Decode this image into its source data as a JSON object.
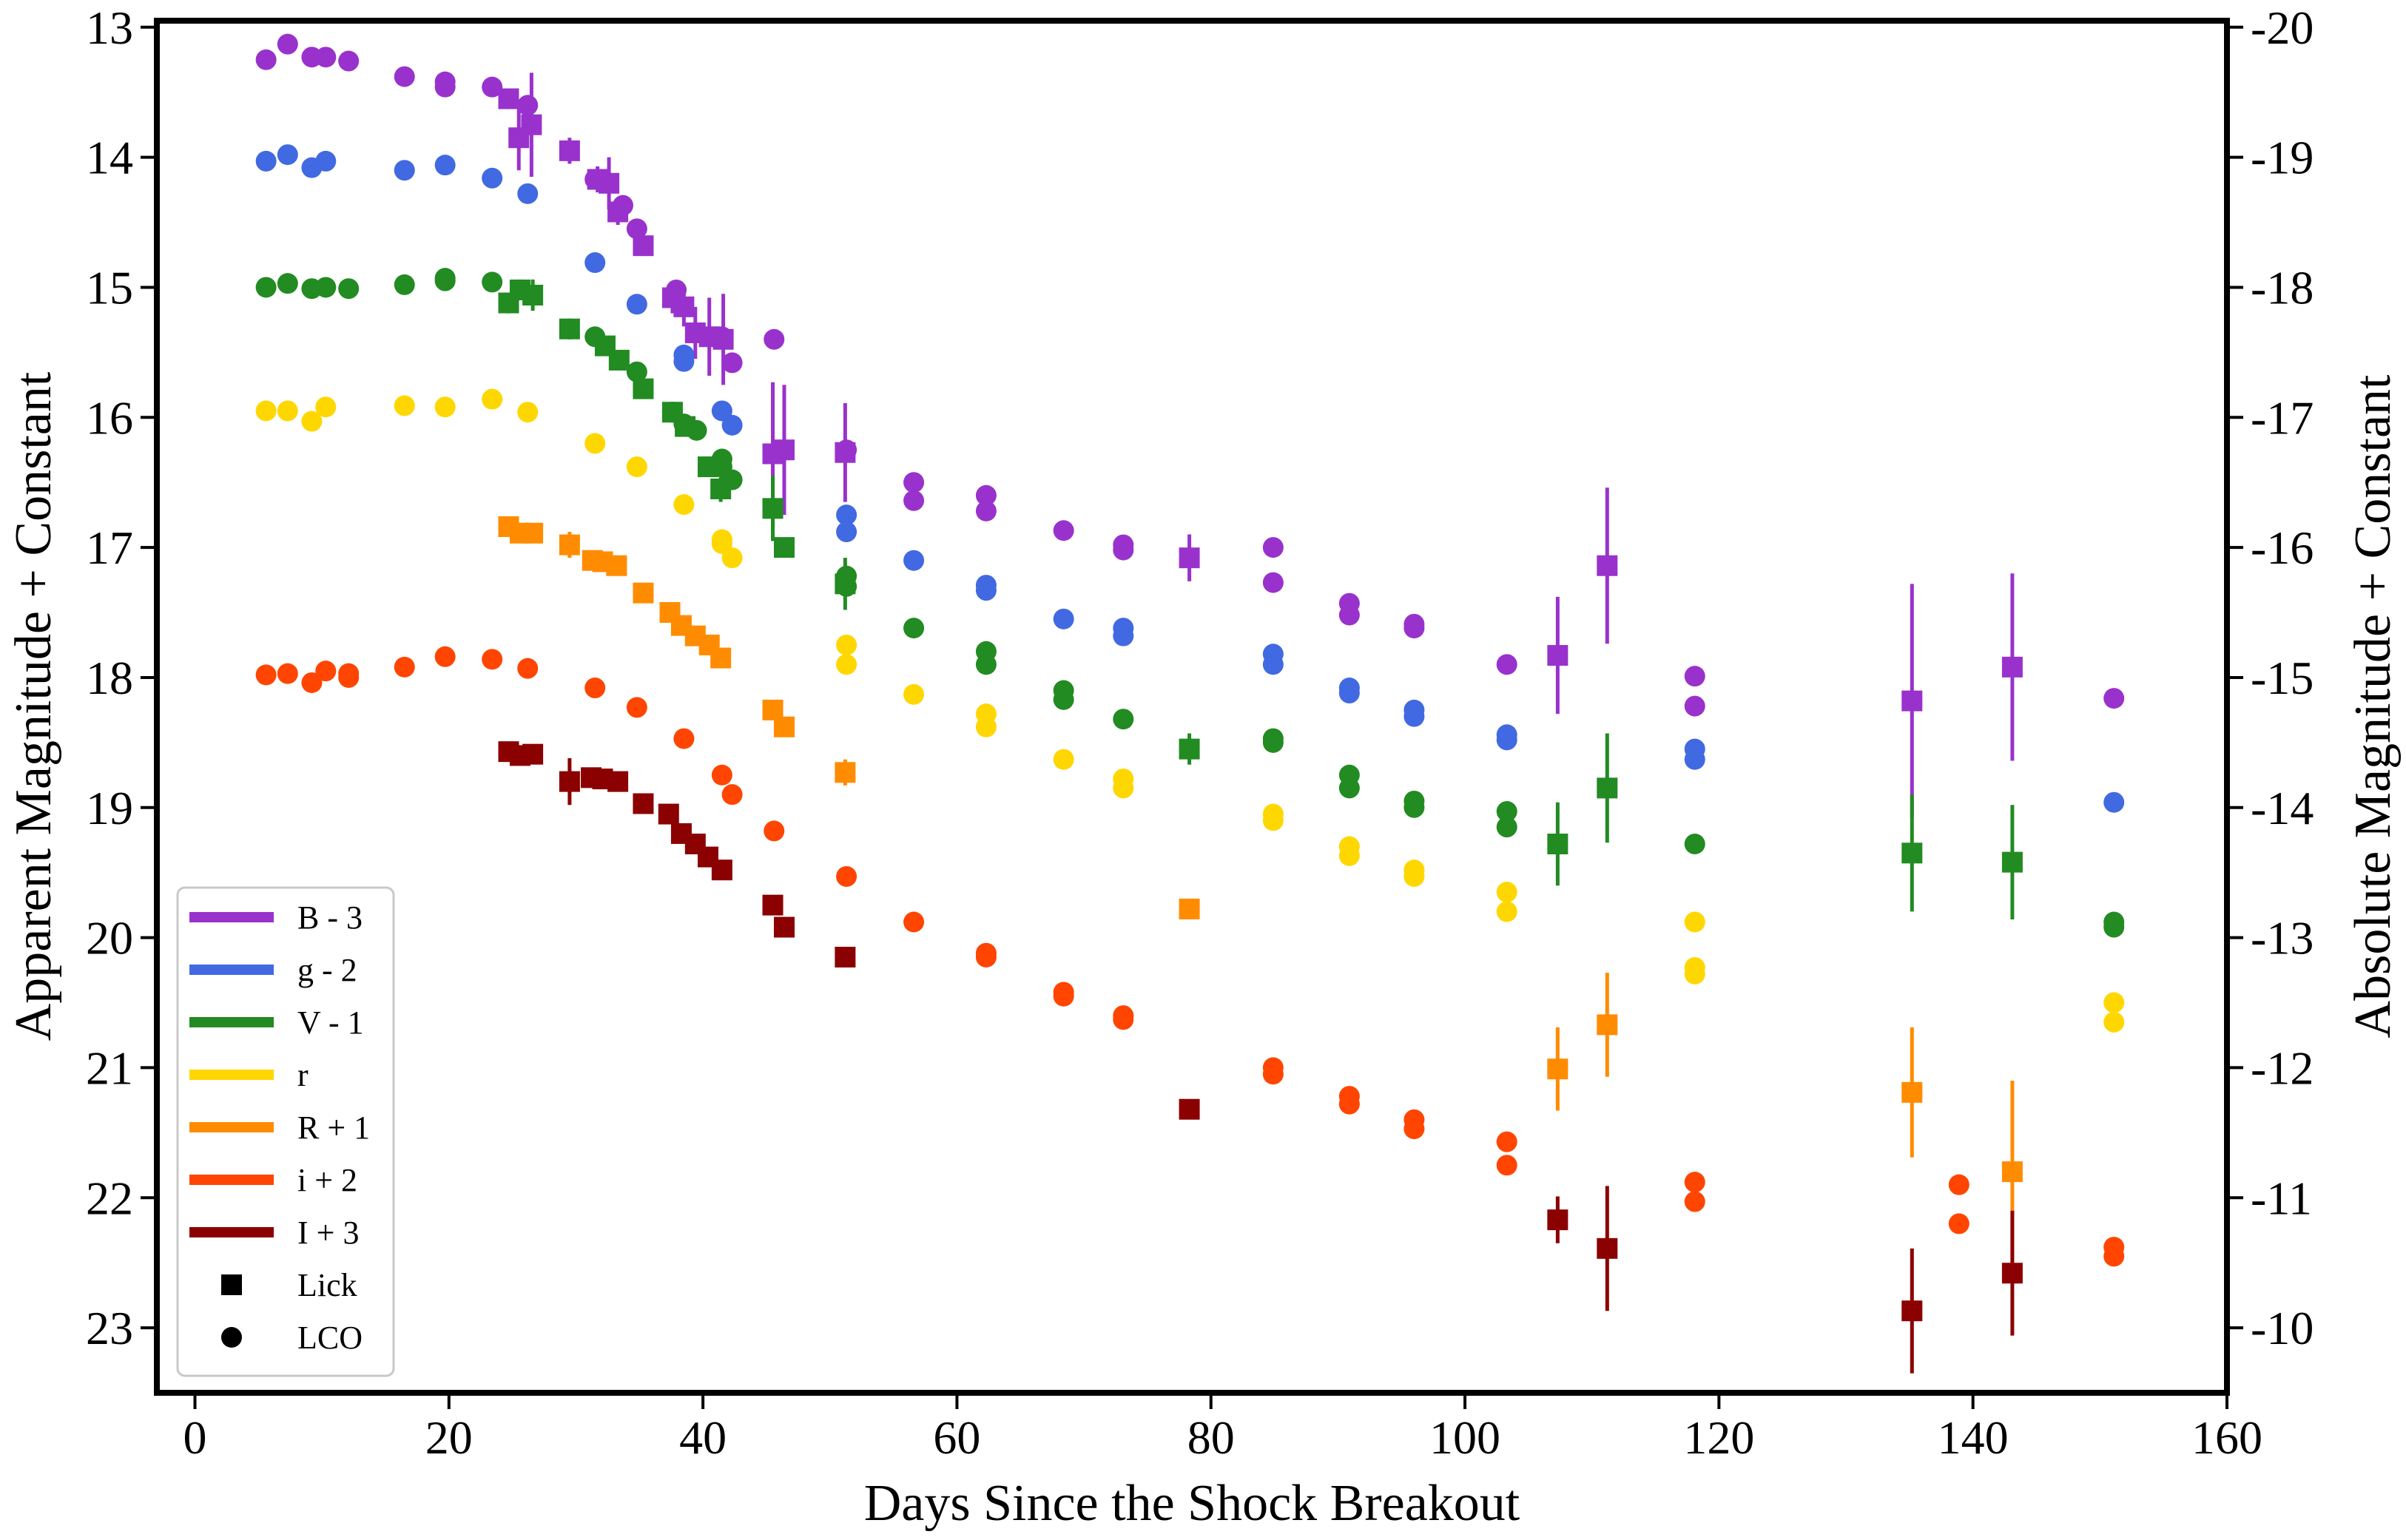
{
  "chart_data": {
    "type": "scatter",
    "title": "",
    "xlabel": "Days Since the Shock Breakout",
    "ylabel": "Apparent Magnitude + Constant",
    "ylabel_right": "Absolute Magnitude + Constant",
    "xlim": [
      -3,
      160
    ],
    "ylim": [
      23.5,
      12.95
    ],
    "ylim_right": [
      -9.5,
      -20.05
    ],
    "y_inverted": true,
    "grid": false,
    "legend_position": "bottom-left",
    "x_ticks": [
      "0",
      "20",
      "40",
      "60",
      "80",
      "100",
      "120",
      "140",
      "160"
    ],
    "y_ticks": [
      "13",
      "14",
      "15",
      "16",
      "17",
      "18",
      "19",
      "20",
      "21",
      "22",
      "23"
    ],
    "y_ticks_right": [
      "-20",
      "-19",
      "-18",
      "-17",
      "-16",
      "-15",
      "-14",
      "-13",
      "-12",
      "-11",
      "-10"
    ],
    "markers": [
      {
        "name": "Lick",
        "shape": "square"
      },
      {
        "name": "LCO",
        "shape": "circle"
      }
    ],
    "series": [
      {
        "name": "B - 3",
        "color": "#9932CC",
        "lco": [
          [
            5.6,
            13.25
          ],
          [
            7.3,
            13.13
          ],
          [
            9.2,
            13.23
          ],
          [
            10.3,
            13.23
          ],
          [
            12.1,
            13.26
          ],
          [
            16.5,
            13.38
          ],
          [
            19.7,
            13.42
          ],
          [
            19.7,
            13.46
          ],
          [
            23.4,
            13.46
          ],
          [
            26.2,
            13.6
          ],
          [
            31.5,
            14.17
          ],
          [
            33.7,
            14.37
          ],
          [
            34.8,
            14.55
          ],
          [
            37.9,
            15.02
          ],
          [
            41.5,
            15.38
          ],
          [
            42.3,
            15.58
          ],
          [
            45.6,
            15.4
          ],
          [
            51.3,
            16.25
          ],
          [
            56.6,
            16.5
          ],
          [
            56.6,
            16.64
          ],
          [
            62.3,
            16.6
          ],
          [
            62.3,
            16.72
          ],
          [
            68.4,
            16.87
          ],
          [
            73.1,
            16.98
          ],
          [
            73.1,
            17.02
          ],
          [
            84.9,
            17.0
          ],
          [
            84.9,
            17.27
          ],
          [
            90.9,
            17.43
          ],
          [
            90.9,
            17.52
          ],
          [
            96.0,
            17.59
          ],
          [
            96.0,
            17.62
          ],
          [
            103.3,
            17.9
          ],
          [
            118.1,
            17.99
          ],
          [
            118.1,
            18.22
          ],
          [
            151.1,
            18.16
          ]
        ],
        "lick": [
          [
            24.7,
            13.55
          ],
          [
            25.5,
            13.85,
            0.25
          ],
          [
            26.5,
            13.75,
            0.4
          ],
          [
            29.5,
            13.95,
            0.1
          ],
          [
            31.7,
            14.17,
            0.1
          ],
          [
            32.6,
            14.2,
            0.2
          ],
          [
            33.3,
            14.42,
            0.1
          ],
          [
            35.3,
            14.68
          ],
          [
            37.6,
            15.08,
            0.12
          ],
          [
            38.5,
            15.15,
            0.15
          ],
          [
            39.4,
            15.35,
            0.2
          ],
          [
            40.5,
            15.38,
            0.3
          ],
          [
            41.6,
            15.4,
            0.35
          ],
          [
            45.5,
            16.28,
            0.55
          ],
          [
            46.4,
            16.25,
            0.5
          ],
          [
            51.2,
            16.27,
            0.38
          ],
          [
            78.3,
            17.08,
            0.18
          ],
          [
            107.3,
            17.83,
            0.45
          ],
          [
            111.2,
            17.14,
            0.6
          ],
          [
            135.2,
            18.18,
            0.9
          ],
          [
            143.1,
            17.92,
            0.72
          ]
        ]
      },
      {
        "name": "g - 2",
        "color": "#4169E1",
        "lco": [
          [
            5.6,
            14.03
          ],
          [
            7.3,
            13.98
          ],
          [
            9.2,
            14.08
          ],
          [
            10.3,
            14.03
          ],
          [
            16.5,
            14.1
          ],
          [
            19.7,
            14.06
          ],
          [
            23.4,
            14.16
          ],
          [
            26.2,
            14.28
          ],
          [
            31.5,
            14.81
          ],
          [
            34.8,
            15.13
          ],
          [
            38.5,
            15.52
          ],
          [
            38.5,
            15.57
          ],
          [
            41.5,
            15.95
          ],
          [
            42.3,
            16.06
          ],
          [
            51.3,
            16.75
          ],
          [
            51.3,
            16.88
          ],
          [
            56.6,
            17.1
          ],
          [
            62.3,
            17.29
          ],
          [
            62.3,
            17.33
          ],
          [
            68.4,
            17.55
          ],
          [
            73.1,
            17.62
          ],
          [
            73.1,
            17.68
          ],
          [
            84.9,
            17.82
          ],
          [
            84.9,
            17.9
          ],
          [
            90.9,
            18.08
          ],
          [
            90.9,
            18.12
          ],
          [
            96.0,
            18.25
          ],
          [
            96.0,
            18.3
          ],
          [
            103.3,
            18.44
          ],
          [
            103.3,
            18.48
          ],
          [
            118.1,
            18.55
          ],
          [
            118.1,
            18.63
          ],
          [
            151.1,
            18.96
          ]
        ]
      },
      {
        "name": "V - 1",
        "color": "#228B22",
        "lco": [
          [
            5.6,
            15.0
          ],
          [
            7.3,
            14.97
          ],
          [
            9.2,
            15.01
          ],
          [
            10.3,
            15.0
          ],
          [
            12.1,
            15.01
          ],
          [
            16.5,
            14.98
          ],
          [
            19.7,
            14.93
          ],
          [
            19.7,
            14.95
          ],
          [
            23.4,
            14.96
          ],
          [
            31.5,
            15.38
          ],
          [
            34.8,
            15.65
          ],
          [
            38.5,
            16.05
          ],
          [
            39.5,
            16.1
          ],
          [
            41.5,
            16.32
          ],
          [
            41.5,
            16.38
          ],
          [
            42.3,
            16.48
          ],
          [
            51.3,
            17.22
          ],
          [
            51.3,
            17.3
          ],
          [
            56.6,
            17.62
          ],
          [
            62.3,
            17.8
          ],
          [
            62.3,
            17.9
          ],
          [
            68.4,
            18.1
          ],
          [
            68.4,
            18.17
          ],
          [
            73.1,
            18.32
          ],
          [
            84.9,
            18.47
          ],
          [
            84.9,
            18.5
          ],
          [
            90.9,
            18.75
          ],
          [
            90.9,
            18.85
          ],
          [
            96.0,
            18.95
          ],
          [
            96.0,
            19.0
          ],
          [
            103.3,
            19.03
          ],
          [
            103.3,
            19.15
          ],
          [
            118.1,
            19.28
          ],
          [
            151.1,
            19.88
          ],
          [
            151.1,
            19.92
          ]
        ],
        "lick": [
          [
            24.7,
            15.12,
            0.08
          ],
          [
            25.6,
            15.02,
            0.08
          ],
          [
            26.6,
            15.06,
            0.12
          ],
          [
            29.5,
            15.32,
            0.08
          ],
          [
            32.3,
            15.45
          ],
          [
            33.4,
            15.56
          ],
          [
            35.3,
            15.78
          ],
          [
            37.6,
            15.96,
            0.08
          ],
          [
            38.6,
            16.07
          ],
          [
            40.4,
            16.38
          ],
          [
            41.4,
            16.55,
            0.1
          ],
          [
            45.5,
            16.7,
            0.25
          ],
          [
            46.4,
            17.0
          ],
          [
            51.2,
            17.28,
            0.2
          ],
          [
            78.3,
            18.55,
            0.12
          ],
          [
            107.3,
            19.28,
            0.32
          ],
          [
            111.2,
            18.85,
            0.42
          ],
          [
            135.2,
            19.35,
            0.45
          ],
          [
            143.1,
            19.42,
            0.44
          ]
        ]
      },
      {
        "name": "r",
        "color": "#FFD700",
        "lco": [
          [
            5.6,
            15.95
          ],
          [
            7.3,
            15.95
          ],
          [
            9.2,
            16.03
          ],
          [
            10.3,
            15.92
          ],
          [
            16.5,
            15.91
          ],
          [
            19.7,
            15.92
          ],
          [
            23.4,
            15.86
          ],
          [
            26.2,
            15.96
          ],
          [
            31.5,
            16.2
          ],
          [
            34.8,
            16.38
          ],
          [
            38.5,
            16.67
          ],
          [
            41.5,
            16.94
          ],
          [
            41.5,
            16.97
          ],
          [
            42.3,
            17.08
          ],
          [
            51.3,
            17.75
          ],
          [
            51.3,
            17.9
          ],
          [
            56.6,
            18.13
          ],
          [
            62.3,
            18.28
          ],
          [
            62.3,
            18.38
          ],
          [
            68.4,
            18.63
          ],
          [
            73.1,
            18.78
          ],
          [
            73.1,
            18.85
          ],
          [
            84.9,
            19.05
          ],
          [
            84.9,
            19.1
          ],
          [
            90.9,
            19.3
          ],
          [
            90.9,
            19.37
          ],
          [
            96.0,
            19.48
          ],
          [
            96.0,
            19.53
          ],
          [
            103.3,
            19.65
          ],
          [
            103.3,
            19.8
          ],
          [
            118.1,
            19.88
          ],
          [
            118.1,
            20.23
          ],
          [
            118.1,
            20.28
          ],
          [
            151.1,
            20.5
          ],
          [
            151.1,
            20.65
          ]
        ]
      },
      {
        "name": "R + 1",
        "color": "#FF8C00",
        "lick": [
          [
            24.7,
            16.84
          ],
          [
            25.6,
            16.89
          ],
          [
            26.6,
            16.89
          ],
          [
            29.5,
            16.98,
            0.1
          ],
          [
            31.3,
            17.1
          ],
          [
            32.1,
            17.11
          ],
          [
            33.2,
            17.14
          ],
          [
            35.3,
            17.35
          ],
          [
            37.4,
            17.5
          ],
          [
            38.3,
            17.6
          ],
          [
            39.4,
            17.68
          ],
          [
            40.5,
            17.75
          ],
          [
            41.4,
            17.85
          ],
          [
            45.5,
            18.25
          ],
          [
            46.4,
            18.38
          ],
          [
            51.2,
            18.73,
            0.1
          ],
          [
            78.3,
            19.78
          ],
          [
            107.3,
            21.01,
            0.32
          ],
          [
            111.2,
            20.67,
            0.4
          ],
          [
            135.2,
            21.19,
            0.5
          ],
          [
            143.1,
            21.8,
            0.7
          ]
        ]
      },
      {
        "name": "i + 2",
        "color": "#FF4500",
        "lco": [
          [
            5.6,
            17.98
          ],
          [
            7.3,
            17.97
          ],
          [
            9.2,
            18.04
          ],
          [
            10.3,
            17.95
          ],
          [
            12.1,
            17.97
          ],
          [
            12.1,
            18.0
          ],
          [
            16.5,
            17.92
          ],
          [
            19.7,
            17.84
          ],
          [
            23.4,
            17.86
          ],
          [
            26.2,
            17.93
          ],
          [
            31.5,
            18.08
          ],
          [
            34.8,
            18.23
          ],
          [
            38.5,
            18.47
          ],
          [
            41.5,
            18.75
          ],
          [
            42.3,
            18.9
          ],
          [
            45.6,
            19.18
          ],
          [
            51.3,
            19.53
          ],
          [
            56.6,
            19.88
          ],
          [
            62.3,
            20.12
          ],
          [
            62.3,
            20.15
          ],
          [
            68.4,
            20.42
          ],
          [
            68.4,
            20.45
          ],
          [
            73.1,
            20.6
          ],
          [
            73.1,
            20.63
          ],
          [
            84.9,
            21.0
          ],
          [
            84.9,
            21.05
          ],
          [
            90.9,
            21.22
          ],
          [
            90.9,
            21.28
          ],
          [
            96.0,
            21.4
          ],
          [
            96.0,
            21.47
          ],
          [
            103.3,
            21.57
          ],
          [
            103.3,
            21.75
          ],
          [
            118.1,
            21.88
          ],
          [
            118.1,
            22.03
          ],
          [
            138.9,
            21.9
          ],
          [
            138.9,
            22.2
          ],
          [
            151.1,
            22.38
          ],
          [
            151.1,
            22.45
          ]
        ]
      },
      {
        "name": "I + 3",
        "color": "#8B0000",
        "lick": [
          [
            24.7,
            18.57
          ],
          [
            25.6,
            18.6
          ],
          [
            26.6,
            18.59
          ],
          [
            29.5,
            18.8,
            0.18
          ],
          [
            31.2,
            18.77
          ],
          [
            32.1,
            18.78
          ],
          [
            33.3,
            18.8
          ],
          [
            35.3,
            18.97
          ],
          [
            37.3,
            19.05
          ],
          [
            38.3,
            19.2
          ],
          [
            39.4,
            19.28
          ],
          [
            40.4,
            19.38
          ],
          [
            41.5,
            19.48
          ],
          [
            45.5,
            19.75
          ],
          [
            46.4,
            19.92
          ],
          [
            51.2,
            20.15
          ],
          [
            78.3,
            21.32
          ],
          [
            107.3,
            22.17,
            0.18
          ],
          [
            111.2,
            22.39,
            0.48
          ],
          [
            135.2,
            22.87,
            0.48
          ],
          [
            143.1,
            22.58,
            0.48
          ]
        ]
      }
    ]
  }
}
